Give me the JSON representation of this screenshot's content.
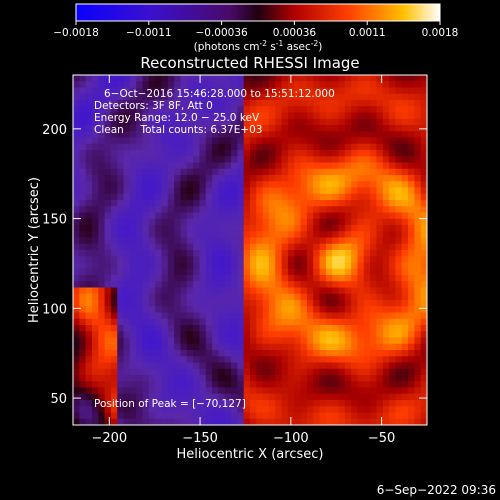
{
  "colorbar": {
    "ticks": [
      "-0.0018",
      "-0.0011",
      "-0.00036",
      "0.00036",
      "0.0011",
      "0.0018"
    ],
    "unit_prefix": "(photons cm",
    "unit_exp1": "-2",
    "unit_mid": " s",
    "unit_exp2": "-1",
    "unit_mid2": " asec",
    "unit_exp3": "-2",
    "unit_suffix": ")",
    "range": [
      -0.0018,
      0.0018
    ]
  },
  "chart_data": {
    "type": "heatmap",
    "title": "Reconstructed RHESSI Image",
    "xlabel": "Heliocentric X (arcsec)",
    "ylabel": "Heliocentric Y (arcsec)",
    "xlim": [
      -220,
      -25
    ],
    "ylim": [
      35,
      230
    ],
    "xticks": [
      -200,
      -150,
      -100,
      -50
    ],
    "yticks": [
      50,
      100,
      150,
      200
    ],
    "xtick_labels": [
      "−200",
      "−150",
      "−100",
      "−50"
    ],
    "ytick_labels": [
      "50",
      "100",
      "150",
      "200"
    ],
    "colormap": "blue-purple-red-yellow-white",
    "peak": [
      -70,
      127
    ],
    "grid": false,
    "annotations": [
      "6−Oct−2016 15:46:28.000 to 15:51:12.000",
      "Detectors: 3F 8F, Att 0",
      "Energy Range: 12.0 − 25.0 keV",
      "Clean     Total counts: 6.37E+03",
      "Position of Peak = [−70,127]"
    ]
  },
  "footer": {
    "date": "6−Sep−2022 09:36"
  }
}
